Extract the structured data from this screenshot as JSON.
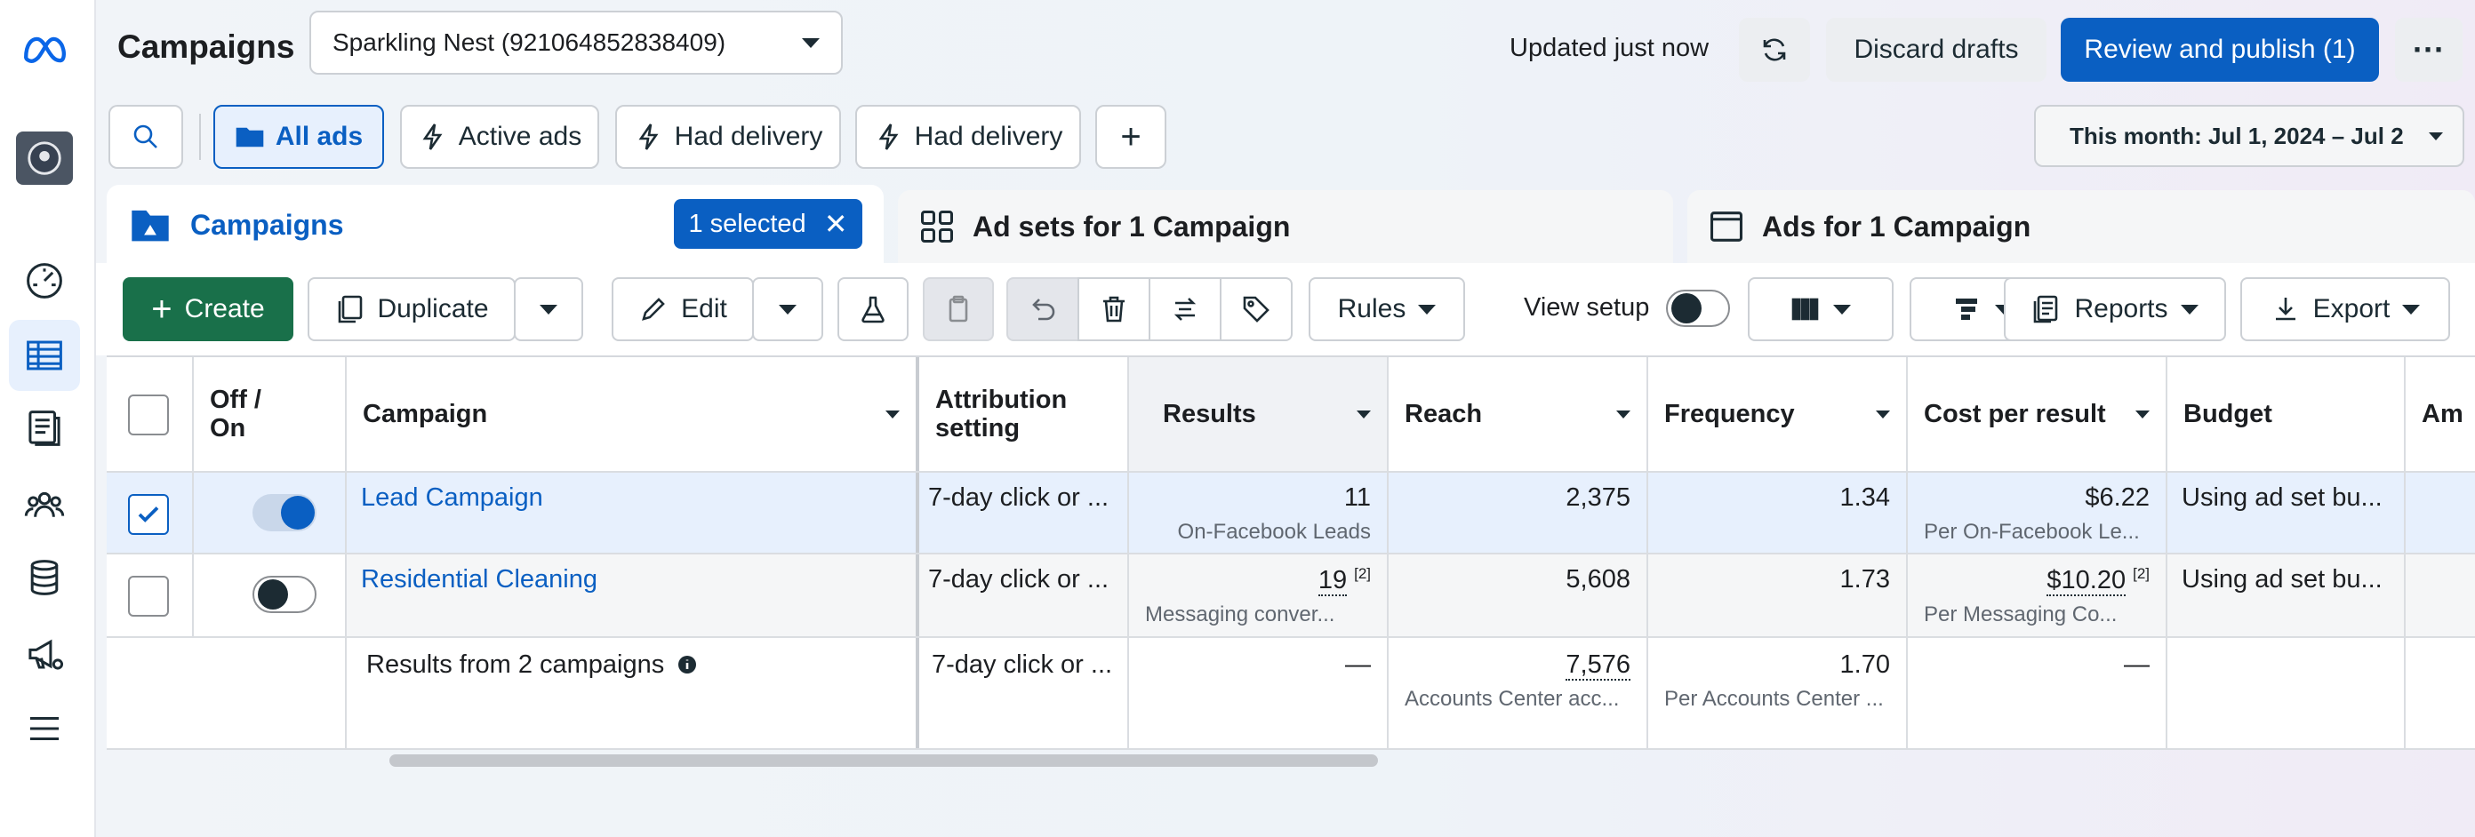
{
  "header": {
    "title": "Campaigns",
    "account": "Sparkling Nest (921064852838409)",
    "updated": "Updated just now",
    "discard": "Discard drafts",
    "publish": "Review and publish (1)"
  },
  "filters": {
    "all_ads": "All ads",
    "active_ads": "Active ads",
    "had_delivery_1": "Had delivery",
    "had_delivery_2": "Had delivery",
    "date_range": "This month: Jul 1, 2024 – Jul 2"
  },
  "tabs": {
    "campaigns": "Campaigns",
    "selected": "1 selected",
    "ad_sets": "Ad sets for 1 Campaign",
    "ads": "Ads for 1 Campaign"
  },
  "toolbar": {
    "create": "Create",
    "duplicate": "Duplicate",
    "edit": "Edit",
    "rules": "Rules",
    "view_setup": "View setup",
    "reports": "Reports",
    "export": "Export"
  },
  "columns": {
    "off_on": "Off / On",
    "campaign": "Campaign",
    "attribution": "Attribution setting",
    "results": "Results",
    "reach": "Reach",
    "frequency": "Frequency",
    "cost_per_result": "Cost per result",
    "budget": "Budget",
    "amount": "Am"
  },
  "rows": [
    {
      "name": "Lead Campaign",
      "enabled": true,
      "checked": true,
      "attribution": "7-day click or ...",
      "results": "11",
      "results_sub": "On-Facebook Leads",
      "reach": "2,375",
      "frequency": "1.34",
      "cost": "$6.22",
      "cost_sub": "Per On-Facebook Le...",
      "budget": "Using ad set bu..."
    },
    {
      "name": "Residential Cleaning",
      "enabled": false,
      "checked": false,
      "attribution": "7-day click or ...",
      "results": "19",
      "results_note": "[2]",
      "results_sub": "Messaging conver...",
      "reach": "5,608",
      "frequency": "1.73",
      "cost": "$10.20",
      "cost_note": "[2]",
      "cost_sub": "Per Messaging Co...",
      "budget": "Using ad set bu..."
    }
  ],
  "summary": {
    "label": "Results from 2 campaigns",
    "attribution": "7-day click or ...",
    "results": "—",
    "reach": "7,576",
    "reach_sub": "Accounts Center acc...",
    "frequency": "1.70",
    "frequency_sub": "Per Accounts Center ...",
    "cost": "—"
  },
  "colors": {
    "accent": "#0a5fc2",
    "create": "#19704a"
  }
}
